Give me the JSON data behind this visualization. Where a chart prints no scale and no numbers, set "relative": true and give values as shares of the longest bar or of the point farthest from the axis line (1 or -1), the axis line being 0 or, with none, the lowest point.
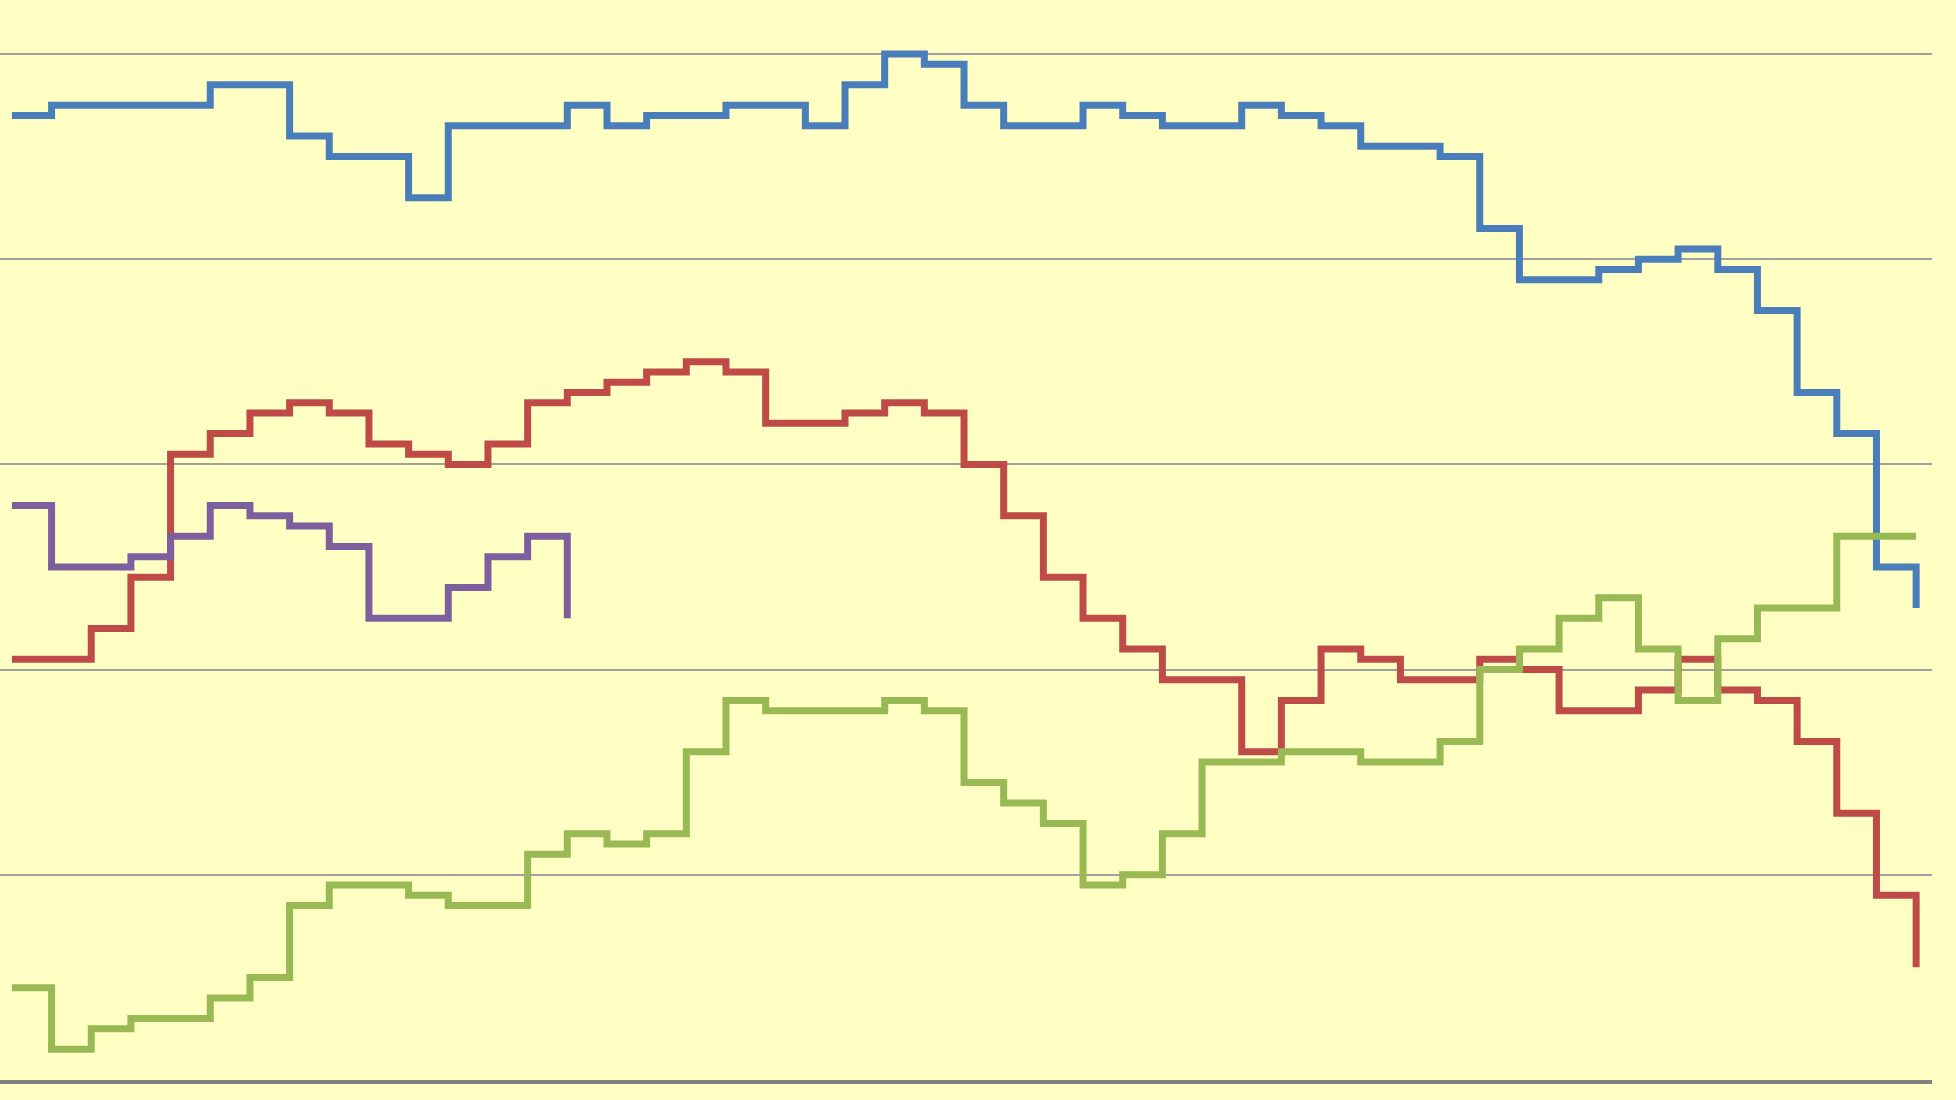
{
  "chart_data": {
    "type": "step",
    "relative": true,
    "grid": "y",
    "categories": [
      null,
      null,
      null,
      null,
      null,
      null,
      null,
      null,
      null,
      null,
      null,
      null,
      null,
      null,
      null,
      null,
      null,
      null,
      null,
      null,
      null,
      null,
      null,
      null,
      null,
      null,
      null,
      null,
      null,
      null,
      null,
      null,
      null,
      null,
      null,
      null,
      null,
      null,
      null,
      null,
      null,
      null,
      null,
      null,
      null,
      null,
      null,
      null,
      null
    ],
    "series": [
      {
        "color": "#4a7ebb",
        "values": [
          0.94,
          0.95,
          0.95,
          0.95,
          0.95,
          0.97,
          0.97,
          0.92,
          0.9,
          0.9,
          0.86,
          0.93,
          0.93,
          0.93,
          0.95,
          0.93,
          0.94,
          0.94,
          0.95,
          0.95,
          0.93,
          0.97,
          1.0,
          0.99,
          0.95,
          0.93,
          0.93,
          0.95,
          0.94,
          0.93,
          0.93,
          0.95,
          0.94,
          0.93,
          0.91,
          0.91,
          0.9,
          0.83,
          0.78,
          0.78,
          0.79,
          0.8,
          0.81,
          0.79,
          0.75,
          0.67,
          0.63,
          0.5,
          0.46
        ]
      },
      {
        "color": "#be4b48",
        "values": [
          0.41,
          0.41,
          0.44,
          0.49,
          0.61,
          0.63,
          0.65,
          0.66,
          0.65,
          0.62,
          0.61,
          0.6,
          0.62,
          0.66,
          0.67,
          0.68,
          0.69,
          0.7,
          0.69,
          0.64,
          0.64,
          0.65,
          0.66,
          0.65,
          0.6,
          0.55,
          0.49,
          0.45,
          0.42,
          0.39,
          0.39,
          0.32,
          0.37,
          0.42,
          0.41,
          0.39,
          0.39,
          0.41,
          0.4,
          0.36,
          0.36,
          0.38,
          0.41,
          0.38,
          0.37,
          0.33,
          0.26,
          0.18,
          0.11
        ]
      },
      {
        "color": "#7d5fa0",
        "values": [
          0.56,
          0.5,
          0.5,
          0.51,
          0.53,
          0.56,
          0.55,
          0.54,
          0.52,
          0.45,
          0.45,
          0.48,
          0.51,
          0.53,
          0.45,
          null,
          null,
          null,
          null,
          null,
          null,
          null,
          null,
          null,
          null,
          null,
          null,
          null,
          null,
          null,
          null,
          null,
          null,
          null,
          null,
          null,
          null,
          null,
          null,
          null,
          null,
          null,
          null,
          null,
          null,
          null,
          null,
          null,
          null
        ]
      },
      {
        "color": "#98b954",
        "values": [
          0.09,
          0.03,
          0.05,
          0.06,
          0.06,
          0.08,
          0.1,
          0.17,
          0.19,
          0.19,
          0.18,
          0.17,
          0.17,
          0.22,
          0.24,
          0.23,
          0.24,
          0.32,
          0.37,
          0.36,
          0.36,
          0.36,
          0.37,
          0.36,
          0.29,
          0.27,
          0.25,
          0.19,
          0.2,
          0.24,
          0.31,
          0.31,
          0.32,
          0.32,
          0.31,
          0.31,
          0.33,
          0.4,
          0.42,
          0.45,
          0.47,
          0.42,
          0.37,
          0.43,
          0.46,
          0.46,
          0.53,
          0.53,
          0.53
        ]
      }
    ]
  }
}
